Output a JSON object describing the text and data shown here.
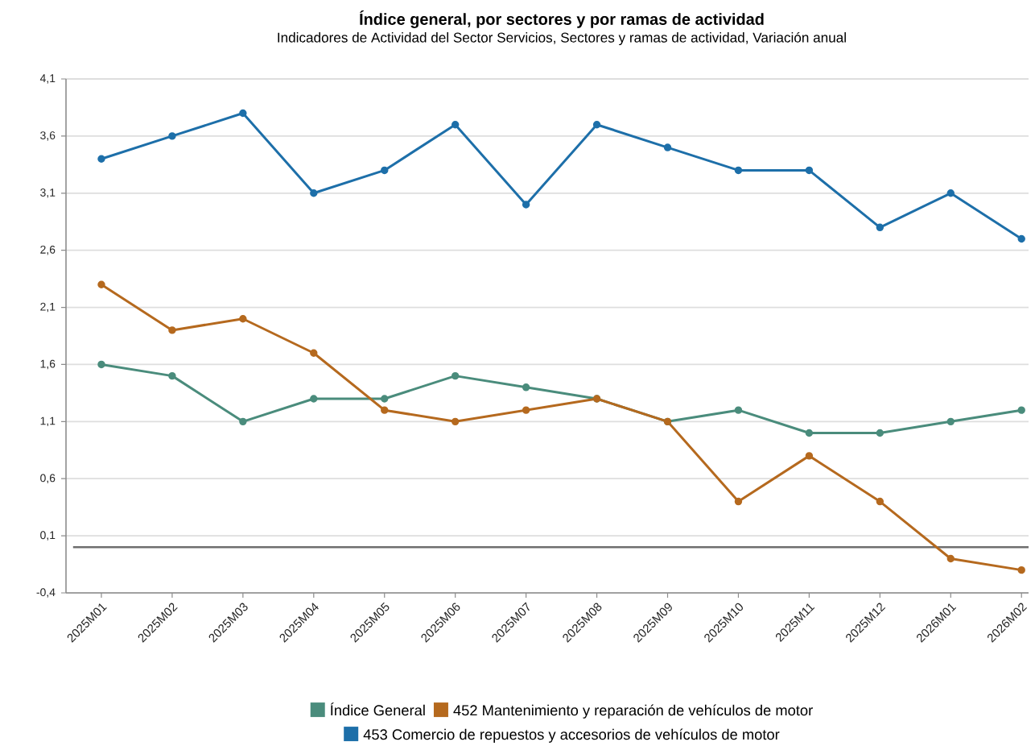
{
  "chart_data": {
    "type": "line",
    "title": "Índice general, por sectores y por ramas de actividad",
    "subtitle": "Indicadores de Actividad del Sector Servicios, Sectores y ramas de actividad, Variación anual",
    "categories": [
      "2025M01",
      "2025M02",
      "2025M03",
      "2025M04",
      "2025M05",
      "2025M06",
      "2025M07",
      "2025M08",
      "2025M09",
      "2025M10",
      "2025M11",
      "2025M12",
      "2026M01",
      "2026M02"
    ],
    "series": [
      {
        "name": "Índice General",
        "color": "#4a8c7c",
        "values": [
          1.6,
          1.5,
          1.1,
          1.3,
          1.3,
          1.5,
          1.4,
          1.3,
          1.1,
          1.2,
          1.0,
          1.0,
          1.1,
          1.2
        ]
      },
      {
        "name": "452 Mantenimiento y reparación de vehículos de motor",
        "color": "#b5691e",
        "values": [
          2.3,
          1.9,
          2.0,
          1.7,
          1.2,
          1.1,
          1.2,
          1.3,
          1.1,
          0.4,
          0.8,
          0.4,
          -0.1,
          -0.2
        ]
      },
      {
        "name": "453 Comercio de repuestos y accesorios de vehículos de motor",
        "color": "#1d6fa9",
        "values": [
          3.4,
          3.6,
          3.8,
          3.1,
          3.3,
          3.7,
          3.0,
          3.7,
          3.5,
          3.3,
          3.3,
          2.8,
          3.1,
          2.7
        ]
      }
    ],
    "ylim": [
      -0.4,
      4.1
    ],
    "yticks": [
      {
        "value": -0.4,
        "label": "-0,4"
      },
      {
        "value": 0.1,
        "label": "0,1"
      },
      {
        "value": 0.6,
        "label": "0,6"
      },
      {
        "value": 1.1,
        "label": "1,1"
      },
      {
        "value": 1.6,
        "label": "1,6"
      },
      {
        "value": 2.1,
        "label": "2,1"
      },
      {
        "value": 2.6,
        "label": "2,6"
      },
      {
        "value": 3.1,
        "label": "3,1"
      },
      {
        "value": 3.6,
        "label": "3,6"
      },
      {
        "value": 4.1,
        "label": "4,1"
      }
    ],
    "grid": "y",
    "legend": "bottom",
    "marker": "circle",
    "line_style": "solid",
    "ref_lines": [
      {
        "axis": "y",
        "value": 0,
        "color": "#6e6e6e"
      }
    ]
  }
}
